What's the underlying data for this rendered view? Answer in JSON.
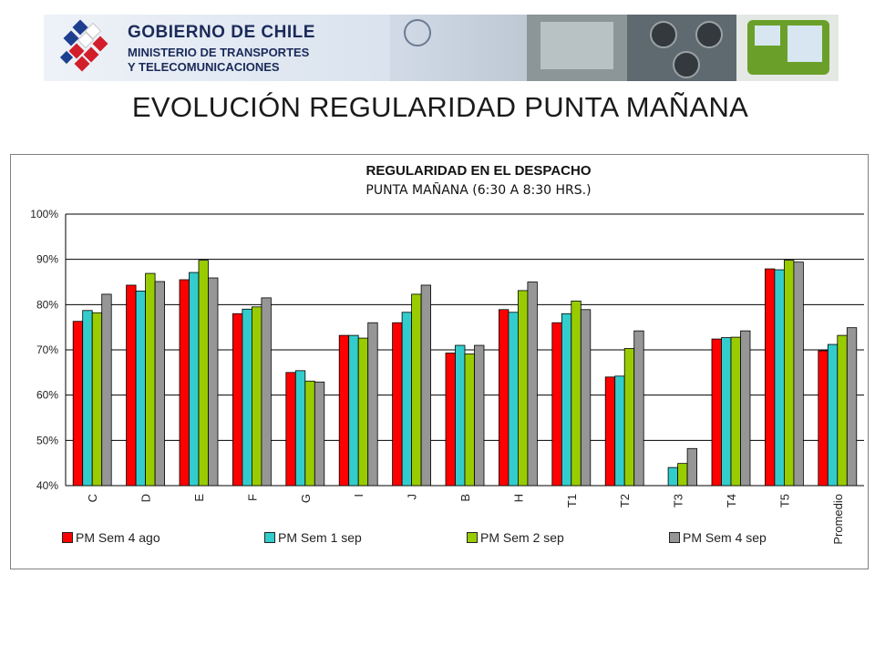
{
  "banner": {
    "line1": "GOBIERNO DE CHILE",
    "line2": "MINISTERIO DE TRANSPORTES",
    "line3": "Y TELECOMUNICACIONES"
  },
  "page_title": "EVOLUCIÓN REGULARIDAD PUNTA MAÑANA",
  "chart_data": {
    "type": "bar",
    "title": "REGULARIDAD EN EL DESPACHO",
    "subtitle": "PUNTA MAÑANA (6:30 A 8:30 HRS.)",
    "xlabel": "",
    "ylabel": "",
    "ylim": [
      40,
      100
    ],
    "yticks": [
      "40%",
      "50%",
      "60%",
      "70%",
      "80%",
      "90%",
      "100%"
    ],
    "grid": true,
    "legend_position": "bottom",
    "categories": [
      "C",
      "D",
      "E",
      "F",
      "G",
      "I",
      "J",
      "B",
      "H",
      "T1",
      "T2",
      "T3",
      "T4",
      "T5",
      "Promedio"
    ],
    "series": [
      {
        "name": "PM Sem 4 ago",
        "color": "#ff0000",
        "values": [
          76.3,
          84.3,
          85.5,
          78.0,
          65.0,
          73.2,
          76.0,
          69.3,
          78.9,
          76.0,
          64.0,
          null,
          72.4,
          87.9,
          69.8
        ]
      },
      {
        "name": "PM Sem 1 sep",
        "color": "#33cccc",
        "values": [
          78.7,
          83.0,
          87.1,
          79.0,
          65.4,
          73.2,
          78.3,
          71.0,
          78.3,
          78.0,
          64.2,
          44.0,
          72.7,
          87.7,
          71.2
        ]
      },
      {
        "name": "PM Sem 2 sep",
        "color": "#99cc00",
        "values": [
          78.2,
          86.9,
          89.8,
          79.5,
          63.1,
          72.6,
          82.3,
          69.1,
          83.1,
          80.8,
          70.3,
          44.9,
          72.8,
          89.8,
          73.2
        ]
      },
      {
        "name": "PM Sem 4 sep",
        "color": "#969696",
        "values": [
          82.3,
          85.1,
          85.9,
          81.5,
          62.9,
          76.0,
          84.3,
          71.0,
          85.0,
          78.9,
          74.2,
          48.2,
          74.2,
          89.4,
          74.9
        ]
      }
    ]
  }
}
